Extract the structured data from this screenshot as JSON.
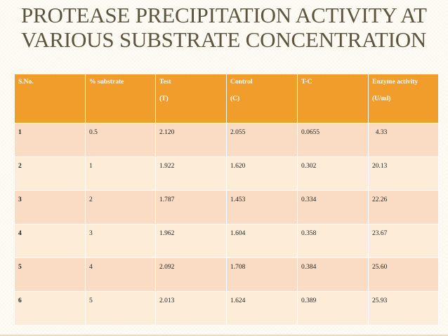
{
  "title_lines": [
    "PROTEASE PRECIPITATION ACTIVITY AT",
    "VARIOUS SUBSTRATE CONCENTRATION"
  ],
  "table": {
    "headers": [
      {
        "main": "S.No.",
        "sub": ""
      },
      {
        "main": "% substrate",
        "sub": ""
      },
      {
        "main": "Test",
        "sub": "(T)"
      },
      {
        "main": "Control",
        "sub": "(C)"
      },
      {
        "main": "T-C",
        "sub": ""
      },
      {
        "main": "Enzyme activity",
        "sub": "(U/ml)"
      }
    ],
    "rows": [
      [
        "1",
        "0.5",
        "2.120",
        "2.055",
        "0.0655",
        "4.33"
      ],
      [
        "2",
        "1",
        "1.922",
        "1.620",
        "0.302",
        "20.13"
      ],
      [
        "3",
        "2",
        "1.787",
        "1.453",
        "0.334",
        "22.26"
      ],
      [
        "4",
        "3",
        "1.962",
        "1.604",
        "0.358",
        "23.67"
      ],
      [
        "5",
        "4",
        "2.092",
        "1.708",
        "0.384",
        "25.60"
      ],
      [
        "6",
        "5",
        "2.013",
        "1.624",
        "0.389",
        "25.93"
      ]
    ]
  },
  "colors": {
    "header_bg": "#f09d2c",
    "row_odd_bg": "#f9dcc3",
    "row_even_bg": "#fcecd8",
    "title_color": "#5d5540"
  }
}
